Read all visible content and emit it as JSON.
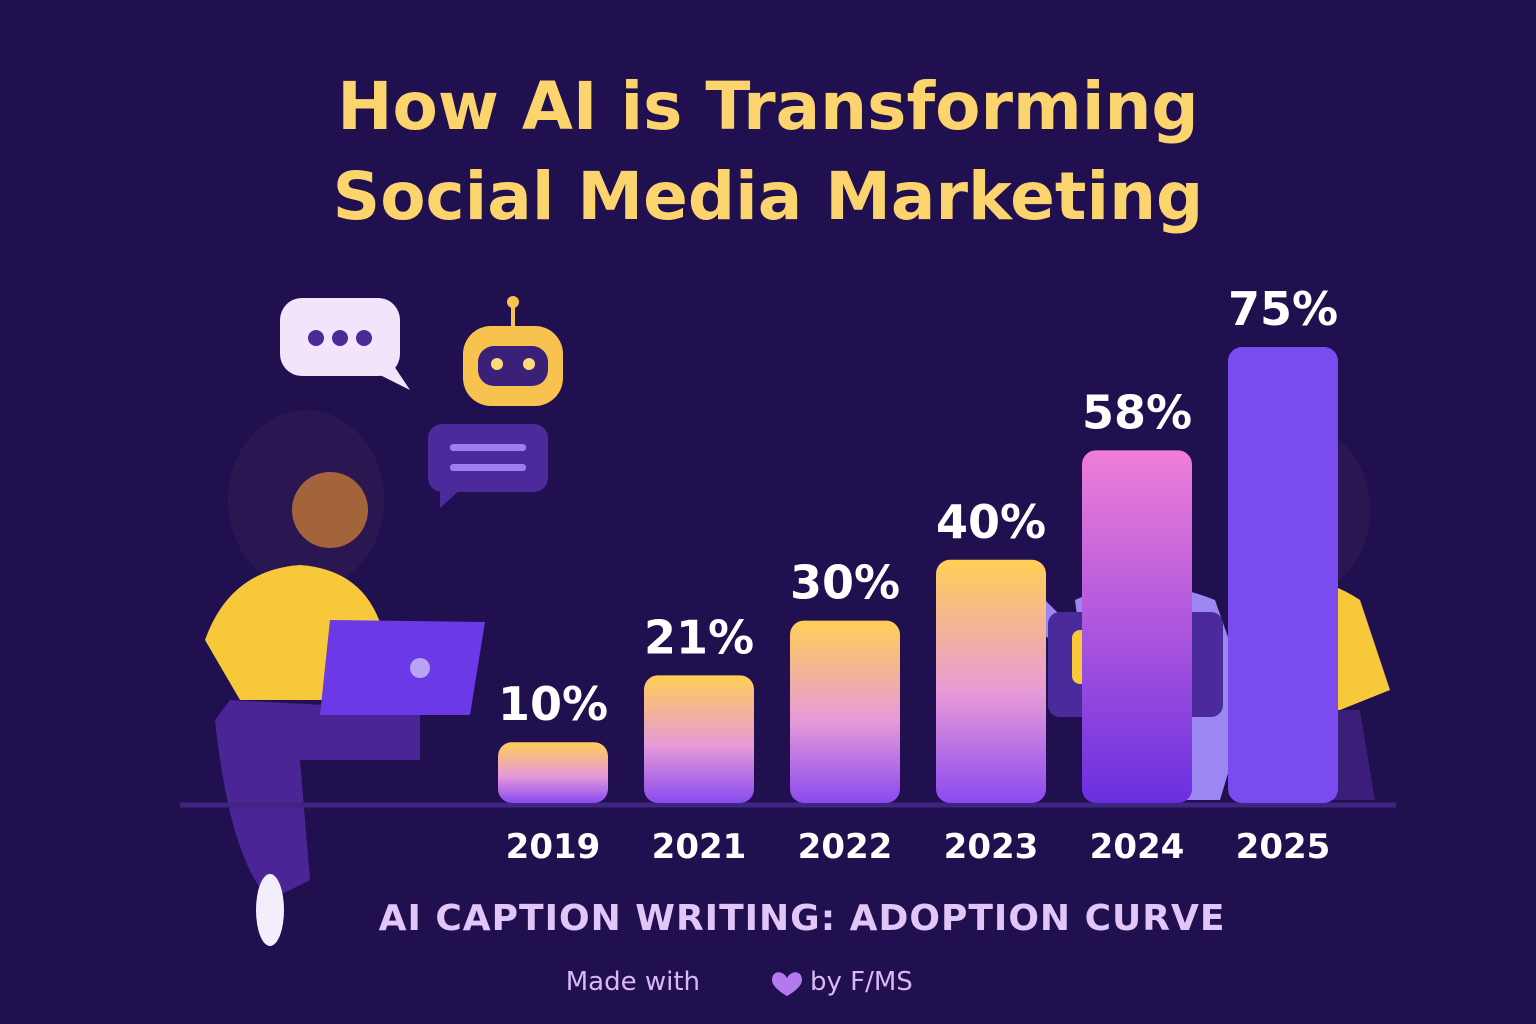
{
  "chart_data": {
    "type": "bar",
    "title": "How AI is Transforming Social Media Marketing",
    "subtitle": "AI CAPTION WRITING: ADOPTION CURVE",
    "footer_prefix": "Made with",
    "footer_suffix": "by F/MS",
    "categories": [
      "2019",
      "2021",
      "2022",
      "2023",
      "2024",
      "2025"
    ],
    "values": [
      10,
      21,
      30,
      40,
      58,
      75
    ],
    "value_labels": [
      "10%",
      "21%",
      "30%",
      "40%",
      "58%",
      "75%"
    ]
  }
}
